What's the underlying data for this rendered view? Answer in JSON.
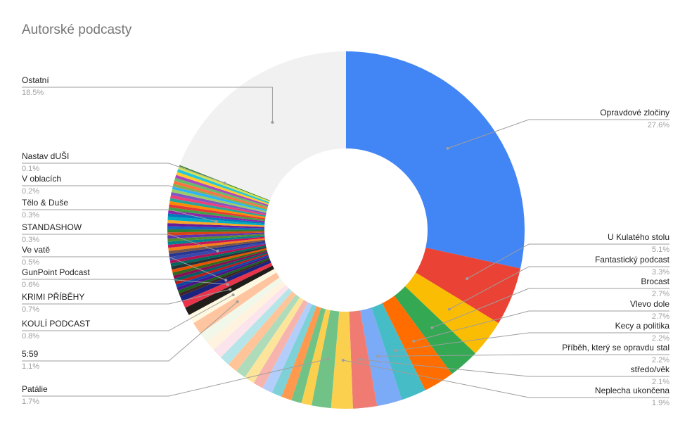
{
  "chart_data": {
    "type": "pie",
    "title": "Autorské podcasty",
    "donut": true,
    "start_angle": "12 o'clock",
    "direction": "clockwise",
    "labeled_slices": [
      {
        "name": "Opravdové zločiny",
        "value": 27.6,
        "label": "27.6%",
        "color": "#4285f4",
        "side": "right"
      },
      {
        "name": "U Kulatého stolu",
        "value": 5.1,
        "label": "5.1%",
        "color": "#ea4335",
        "side": "right"
      },
      {
        "name": "Fantastický podcast",
        "value": 3.3,
        "label": "3.3%",
        "color": "#fbbc04",
        "side": "right"
      },
      {
        "name": "Brocast",
        "value": 2.7,
        "label": "2.7%",
        "color": "#34a853",
        "side": "right"
      },
      {
        "name": "Vlevo dole",
        "value": 2.7,
        "label": "2.7%",
        "color": "#ff6d01",
        "side": "right"
      },
      {
        "name": "Kecy a politika",
        "value": 2.2,
        "label": "2.2%",
        "color": "#46bdc6",
        "side": "right"
      },
      {
        "name": "Příběh, který se opravdu stal",
        "value": 2.2,
        "label": "2.2%",
        "color": "#7baaf7",
        "side": "right"
      },
      {
        "name": "středo/věk",
        "value": 2.1,
        "label": "2.1%",
        "color": "#f07b72",
        "side": "right"
      },
      {
        "name": "Neplecha ukončena",
        "value": 1.9,
        "label": "1.9%",
        "color": "#fcd04f",
        "side": "right"
      },
      {
        "name": "Patálie",
        "value": 1.7,
        "label": "1.7%",
        "color": "#71c287",
        "side": "left"
      },
      {
        "name": "5:59",
        "value": 1.1,
        "label": "1.1%",
        "color": "#ffc4a0",
        "side": "left"
      },
      {
        "name": "KOULÍ PODCAST",
        "value": 0.8,
        "label": "0.8%",
        "color": "#fff8e1",
        "side": "left"
      },
      {
        "name": "KRIMI PŘÍBĚHY",
        "value": 0.7,
        "label": "0.7%",
        "color": "#211d1a",
        "side": "left"
      },
      {
        "name": "GunPoint Podcast",
        "value": 0.6,
        "label": "0.6%",
        "color": "#e8334a",
        "side": "left"
      },
      {
        "name": "Ve vatě",
        "value": 0.5,
        "label": "0.5%",
        "color": "#1a237e",
        "side": "left"
      },
      {
        "name": "STANDASHOW",
        "value": 0.3,
        "label": "0.3%",
        "color": "#3949ab",
        "side": "left"
      },
      {
        "name": "Tělo & Duše",
        "value": 0.3,
        "label": "0.3%",
        "color": "#00acc1",
        "side": "left"
      },
      {
        "name": "V oblacích",
        "value": 0.2,
        "label": "0.2%",
        "color": "#7cb342",
        "side": "left"
      },
      {
        "name": "Nastav dUŠI",
        "value": 0.1,
        "label": "0.1%",
        "color": "#2e7d32",
        "side": "left"
      },
      {
        "name": "Ostatní",
        "value": 18.5,
        "label": "18.5%",
        "color": "#f1f1f1",
        "side": "left"
      }
    ],
    "unlabeled_slices": {
      "segment_a": {
        "count": 13,
        "total": 11.7,
        "colors": [
          "#fcd04f",
          "#71c287",
          "#ff994d",
          "#7ed1d7",
          "#b3cefb",
          "#f7b4ae",
          "#fde49b",
          "#aedcba",
          "#ffc599",
          "#b5e5e8",
          "#fce4ec",
          "#fff3e0",
          "#f1f8e9"
        ]
      },
      "segment_b": {
        "count": 40,
        "total": 10.7,
        "colors": [
          "#3e2723",
          "#1b5e20",
          "#4a148c",
          "#0d47a1",
          "#b71c1c",
          "#006064",
          "#880e4f",
          "#33691e",
          "#e65100",
          "#263238",
          "#00695c",
          "#ad1457",
          "#283593",
          "#795548",
          "#f57f17",
          "#c2185b",
          "#00838f",
          "#558b2f",
          "#5e35b1",
          "#d84315",
          "#2e7d32",
          "#1565c0",
          "#6a1b9a",
          "#f9a825",
          "#0277bd",
          "#8e24aa",
          "#43a047",
          "#e53935",
          "#fb8c00",
          "#26a69a",
          "#ec407a",
          "#7e57c2",
          "#9ccc65",
          "#29b6f6",
          "#ff7043",
          "#66bb6a",
          "#ab47bc",
          "#ffca28",
          "#26c6da",
          "#d4e157"
        ]
      }
    }
  }
}
